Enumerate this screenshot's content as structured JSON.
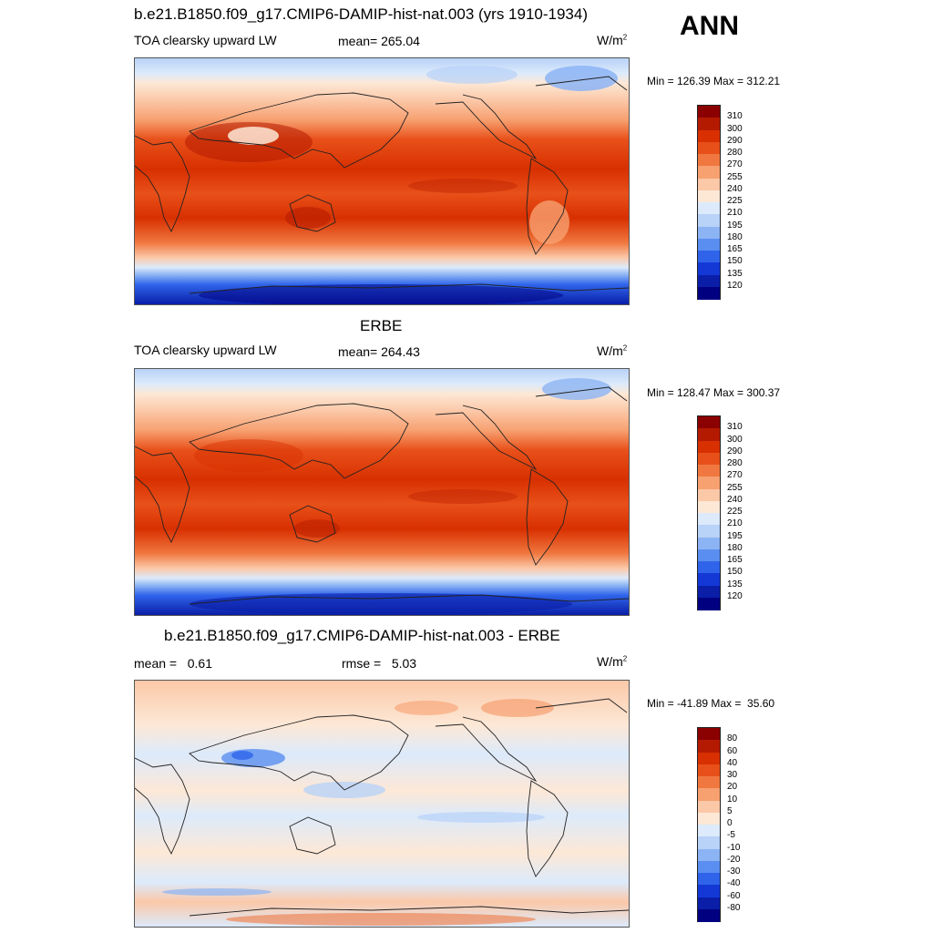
{
  "season": "ANN",
  "panels": [
    {
      "id": "model",
      "title": "b.e21.B1850.f09_g17.CMIP6-DAMIP-hist-nat.003 (yrs 1910-1934)",
      "left_label": "TOA clearsky upward LW",
      "center_label": "mean= 265.04",
      "units_base": "W/m",
      "units_exp": "2",
      "minmax": "Min = 126.39 Max = 312.21",
      "colorbar_levels": [
        "310",
        "300",
        "290",
        "280",
        "270",
        "255",
        "240",
        "225",
        "210",
        "195",
        "180",
        "165",
        "150",
        "135",
        "120"
      ],
      "colorbar_colors": [
        "#8b0000",
        "#b41a00",
        "#d83000",
        "#e8501a",
        "#f07840",
        "#f7a070",
        "#fbc8a8",
        "#fde8d6",
        "#dceafb",
        "#b8d2f8",
        "#8cb4f4",
        "#5a8ef0",
        "#2f64ea",
        "#1438d6",
        "#0a1ea8",
        "#000080"
      ]
    },
    {
      "id": "obs",
      "title": "ERBE",
      "left_label": "TOA clearsky upward LW",
      "center_label": "mean= 264.43",
      "units_base": "W/m",
      "units_exp": "2",
      "minmax": "Min = 128.47 Max = 300.37",
      "colorbar_levels": [
        "310",
        "300",
        "290",
        "280",
        "270",
        "255",
        "240",
        "225",
        "210",
        "195",
        "180",
        "165",
        "150",
        "135",
        "120"
      ],
      "colorbar_colors": [
        "#8b0000",
        "#b41a00",
        "#d83000",
        "#e8501a",
        "#f07840",
        "#f7a070",
        "#fbc8a8",
        "#fde8d6",
        "#dceafb",
        "#b8d2f8",
        "#8cb4f4",
        "#5a8ef0",
        "#2f64ea",
        "#1438d6",
        "#0a1ea8",
        "#000080"
      ]
    },
    {
      "id": "diff",
      "title": "b.e21.B1850.f09_g17.CMIP6-DAMIP-hist-nat.003 - ERBE",
      "left_label": "mean =   0.61",
      "center_label": "rmse =   5.03",
      "units_base": "W/m",
      "units_exp": "2",
      "minmax": "Min = -41.89 Max =  35.60",
      "colorbar_levels": [
        "80",
        "60",
        "40",
        "30",
        "20",
        "10",
        "5",
        "0",
        "-5",
        "-10",
        "-20",
        "-30",
        "-40",
        "-60",
        "-80"
      ],
      "colorbar_colors": [
        "#8b0000",
        "#b41a00",
        "#d83000",
        "#e8501a",
        "#f07840",
        "#f7a070",
        "#fbc8a8",
        "#fde8d6",
        "#dceafb",
        "#b8d2f8",
        "#8cb4f4",
        "#5a8ef0",
        "#2f64ea",
        "#1438d6",
        "#0a1ea8",
        "#000080"
      ]
    }
  ]
}
